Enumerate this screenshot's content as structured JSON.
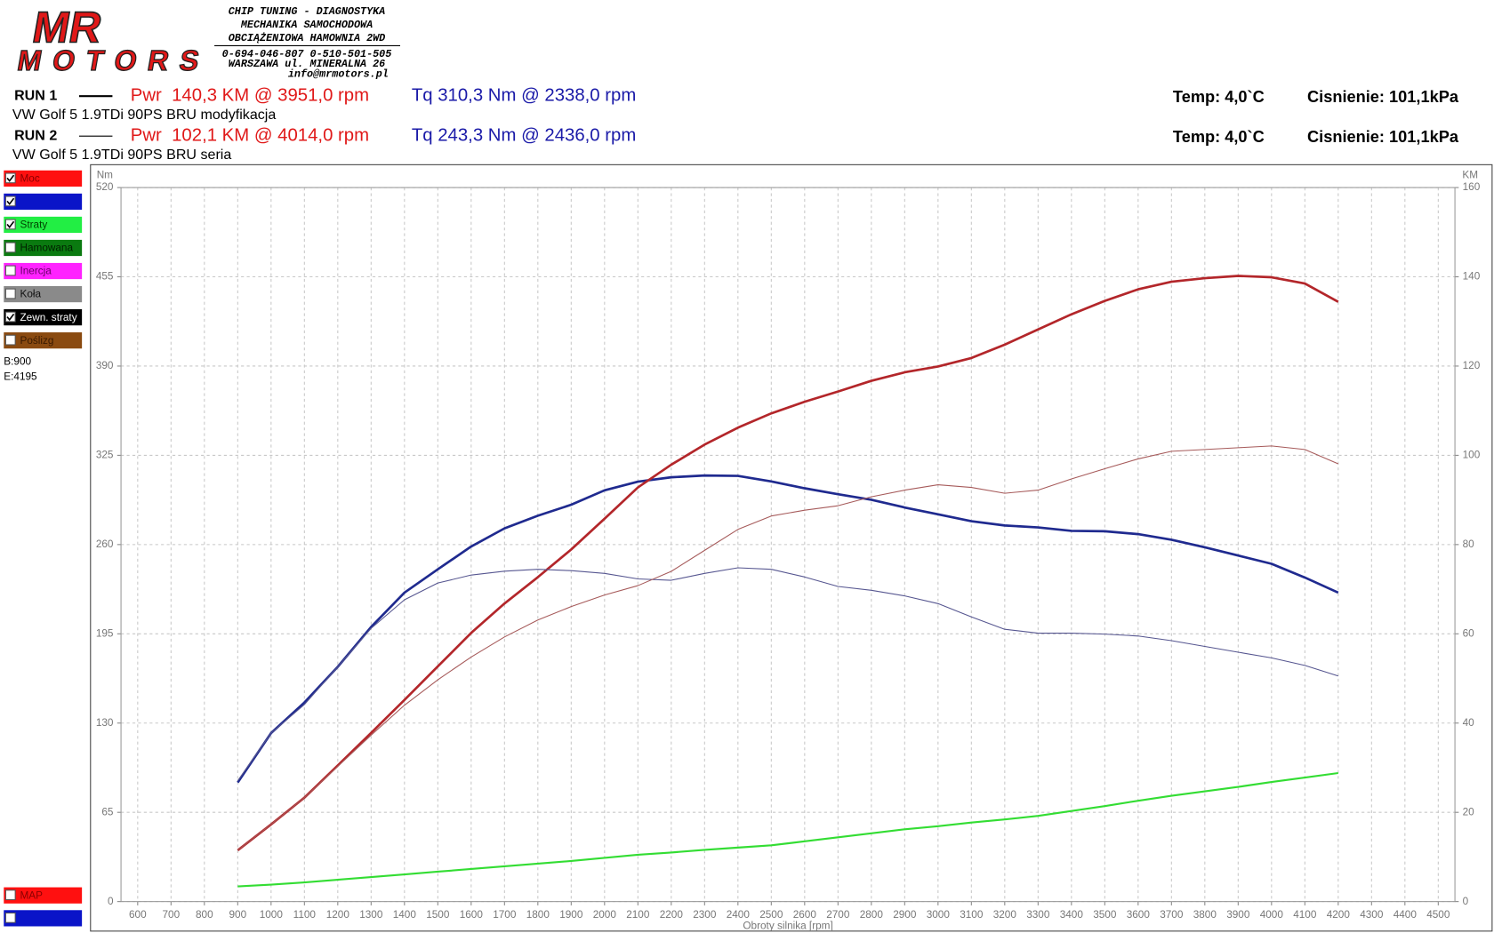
{
  "header": {
    "logo_top": "MR",
    "logo_bottom": "MOTORS",
    "lines": [
      "CHIP TUNING - DIAGNOSTYKA",
      "MECHANIKA SAMOCHODOWA",
      "OBCIĄŻENIOWA HAMOWNIA 2WD",
      "0-694-046-807 0-510-501-505",
      "WARSZAWA ul. MINERALNA 26",
      "info@mrmotors.pl"
    ]
  },
  "runs": [
    {
      "label": "RUN 1",
      "power": "Pwr  140,3 KM @ 3951,0 rpm",
      "torque": "Tq 310,3 Nm @ 2338,0 rpm",
      "temp": "Temp: 4,0`C",
      "pressure": "Cisnienie: 101,1kPa",
      "car": "VW Golf 5 1.9TDi 90PS BRU modyfikacja",
      "line_width": 2
    },
    {
      "label": "RUN 2",
      "power": "Pwr  102,1 KM @ 4014,0 rpm",
      "torque": "Tq 243,3 Nm @ 2436,0 rpm",
      "temp": "Temp: 4,0`C",
      "pressure": "Cisnienie: 101,1kPa",
      "car": "VW Golf 5 1.9TDi 90PS BRU seria",
      "line_width": 1
    }
  ],
  "legend_panel": {
    "items": [
      {
        "label": "Moc",
        "color": "#ff1010",
        "text_color": "#8a0000",
        "checked": true
      },
      {
        "color": "#0a14c8",
        "text_color": "#0a14c8",
        "checked": true
      },
      {
        "label": "Straty",
        "color": "#22ee44",
        "text_color": "#004400",
        "checked": true
      },
      {
        "label": "Hamowana",
        "color": "#0a7a10",
        "text_color": "#002200",
        "checked": false
      },
      {
        "label": "Inercja",
        "color": "#ff22ff",
        "text_color": "#660066",
        "checked": false
      },
      {
        "label": "Koła",
        "color": "#8a8a8a",
        "text_color": "#111111",
        "checked": false
      },
      {
        "label": "Zewn. straty",
        "color": "#000000",
        "text_color": "#ffffff",
        "checked": true
      },
      {
        "label": "Poślizg",
        "color": "#8a4a10",
        "text_color": "#3a1a00",
        "checked": false
      }
    ],
    "begin": "B:900",
    "end": "E:4195",
    "bottom_items": [
      {
        "label": "MAP",
        "color": "#ff1010",
        "text_color": "#8a0000",
        "checked": false
      },
      {
        "color": "#0a14c8",
        "text_color": "#0a14c8",
        "checked": false
      }
    ]
  },
  "chart_data": {
    "type": "line",
    "x_label": "Obroty silnika [rpm]",
    "y_label": "Nm",
    "y2_label": "KM",
    "grid": true,
    "x": [
      900,
      1000,
      1100,
      1200,
      1300,
      1400,
      1500,
      1600,
      1700,
      1800,
      1900,
      2000,
      2100,
      2200,
      2300,
      2400,
      2500,
      2600,
      2700,
      2800,
      2900,
      3000,
      3100,
      3200,
      3300,
      3400,
      3500,
      3600,
      3700,
      3800,
      3900,
      4000,
      4100,
      4200
    ],
    "xlim": [
      550,
      4550
    ],
    "xticks": [
      600,
      700,
      800,
      900,
      1000,
      1100,
      1200,
      1300,
      1400,
      1500,
      1600,
      1700,
      1800,
      1900,
      2000,
      2100,
      2200,
      2300,
      2400,
      2500,
      2600,
      2700,
      2800,
      2900,
      3000,
      3100,
      3200,
      3300,
      3400,
      3500,
      3600,
      3700,
      3800,
      3900,
      4000,
      4100,
      4200,
      4300,
      4400,
      4500
    ],
    "ylim": [
      0,
      520
    ],
    "yticks": [
      0,
      65,
      130,
      195,
      260,
      325,
      390,
      455,
      520
    ],
    "y2lim": [
      0,
      160
    ],
    "y2ticks": [
      0,
      20,
      40,
      60,
      80,
      100,
      120,
      140,
      160
    ],
    "series": [
      {
        "color": "#1f2a8f",
        "line_width": 2.5,
        "axis": "y",
        "values": [
          86.7,
          122.7,
          145,
          171,
          200,
          225,
          242,
          258.6,
          271.8,
          281,
          289,
          299.5,
          305.8,
          309,
          310.3,
          310,
          306,
          301,
          296.7,
          292.6,
          287,
          282,
          277,
          273.9,
          272.5,
          270,
          269.7,
          267.6,
          263.5,
          258,
          252,
          246,
          236,
          225
        ]
      },
      {
        "color": "#b3262a",
        "line_width": 2.5,
        "axis": "y2",
        "values": [
          11.5,
          17.3,
          23.3,
          30.5,
          37.8,
          45.2,
          52.7,
          60.2,
          66.8,
          72.7,
          78.9,
          85.8,
          92.8,
          97.9,
          102.4,
          106.2,
          109.4,
          112,
          114.3,
          116.7,
          118.6,
          119.9,
          121.8,
          124.8,
          128.2,
          131.6,
          134.6,
          137.2,
          138.9,
          139.7,
          140.2,
          139.9,
          138.5,
          134.4
        ]
      },
      {
        "color": "#565690",
        "line_width": 1,
        "axis": "y",
        "values": [
          88,
          122.7,
          143.5,
          171,
          199,
          219.8,
          232,
          237.8,
          240.6,
          242,
          241,
          239,
          235,
          234,
          239,
          243.1,
          242,
          236.4,
          229.5,
          226.7,
          222.6,
          217,
          207.3,
          198.3,
          195.5,
          195.5,
          194.8,
          193.4,
          190,
          185.8,
          181.6,
          177.5,
          172,
          164.3
        ]
      },
      {
        "color": "#a65a5a",
        "line_width": 1,
        "axis": "y2",
        "values": [
          11.5,
          17.3,
          23.3,
          30.3,
          37.3,
          44,
          49.7,
          54.8,
          59.3,
          63.1,
          66.1,
          68.7,
          70.8,
          74,
          78.7,
          83.4,
          86.4,
          87.7,
          88.7,
          90.7,
          92.2,
          93.4,
          92.8,
          91.5,
          92.2,
          94.7,
          97,
          99.2,
          100.9,
          101.3,
          101.7,
          102.1,
          101.3,
          98.1
        ]
      },
      {
        "color": "#33dd33",
        "line_width": 2,
        "axis": "y2",
        "values": [
          3.4,
          3.8,
          4.3,
          4.9,
          5.5,
          6.1,
          6.7,
          7.3,
          7.9,
          8.5,
          9.1,
          9.8,
          10.5,
          11,
          11.6,
          12.1,
          12.6,
          13.5,
          14.4,
          15.3,
          16.2,
          16.9,
          17.7,
          18.4,
          19.2,
          20.3,
          21.4,
          22.6,
          23.7,
          24.7,
          25.7,
          26.8,
          27.8,
          28.8
        ]
      }
    ]
  }
}
